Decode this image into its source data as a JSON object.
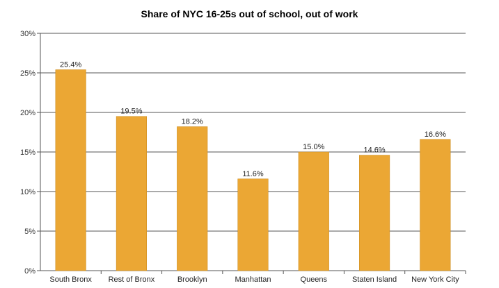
{
  "chart_data": {
    "type": "bar",
    "title": "Share of NYC 16-25s out of school, out of work",
    "categories": [
      "South Bronx",
      "Rest of Bronx",
      "Brooklyn",
      "Manhattan",
      "Queens",
      "Staten Island",
      "New York City"
    ],
    "values": [
      25.4,
      19.5,
      18.2,
      11.6,
      15.0,
      14.6,
      16.6
    ],
    "data_labels": [
      "25.4%",
      "19.5%",
      "18.2%",
      "11.6%",
      "15.0%",
      "14.6%",
      "16.6%"
    ],
    "y_ticks": [
      0,
      5,
      10,
      15,
      20,
      25,
      30
    ],
    "y_tick_labels": [
      "0%",
      "5%",
      "10%",
      "15%",
      "20%",
      "25%",
      "30%"
    ],
    "ylim": [
      0,
      30
    ],
    "xlabel": "",
    "ylabel": "",
    "grid": true,
    "bar_color": "#eba734",
    "bar_edge_color": "#c98a1c"
  }
}
